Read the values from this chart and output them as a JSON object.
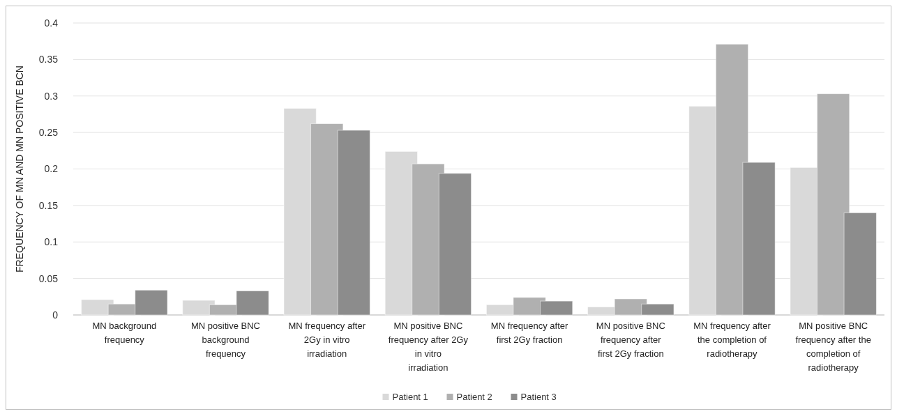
{
  "chart_data": {
    "type": "bar",
    "ylabel": "FREQUENCY OF MN AND MN POSITIVE BCN",
    "categories": [
      "MN background frequency",
      "MN positive BNC background frequency",
      "MN frequency after 2Gy in vitro irradiation",
      "MN positive BNC frequency after 2Gy in vitro irradiation",
      "MN frequency after first 2Gy fraction",
      "MN positive BNC frequency after first 2Gy fraction",
      "MN frequency after the completion of radiotherapy",
      "MN positive BNC frequency after the completion of radiotherapy"
    ],
    "series": [
      {
        "name": "Patient 1",
        "color": "#d9d9d9",
        "values": [
          0.021,
          0.02,
          0.283,
          0.224,
          0.014,
          0.011,
          0.286,
          0.202
        ]
      },
      {
        "name": "Patient 2",
        "color": "#b0b0b0",
        "values": [
          0.015,
          0.014,
          0.262,
          0.207,
          0.024,
          0.022,
          0.371,
          0.303
        ]
      },
      {
        "name": "Patient 3",
        "color": "#8c8c8c",
        "values": [
          0.034,
          0.033,
          0.253,
          0.194,
          0.019,
          0.015,
          0.209,
          0.14
        ]
      }
    ],
    "ylim": [
      0,
      0.4
    ],
    "yticks": [
      0,
      0.05,
      0.1,
      0.15,
      0.2,
      0.25,
      0.3,
      0.35,
      0.4
    ],
    "grid": "y",
    "legend": "bottom"
  }
}
